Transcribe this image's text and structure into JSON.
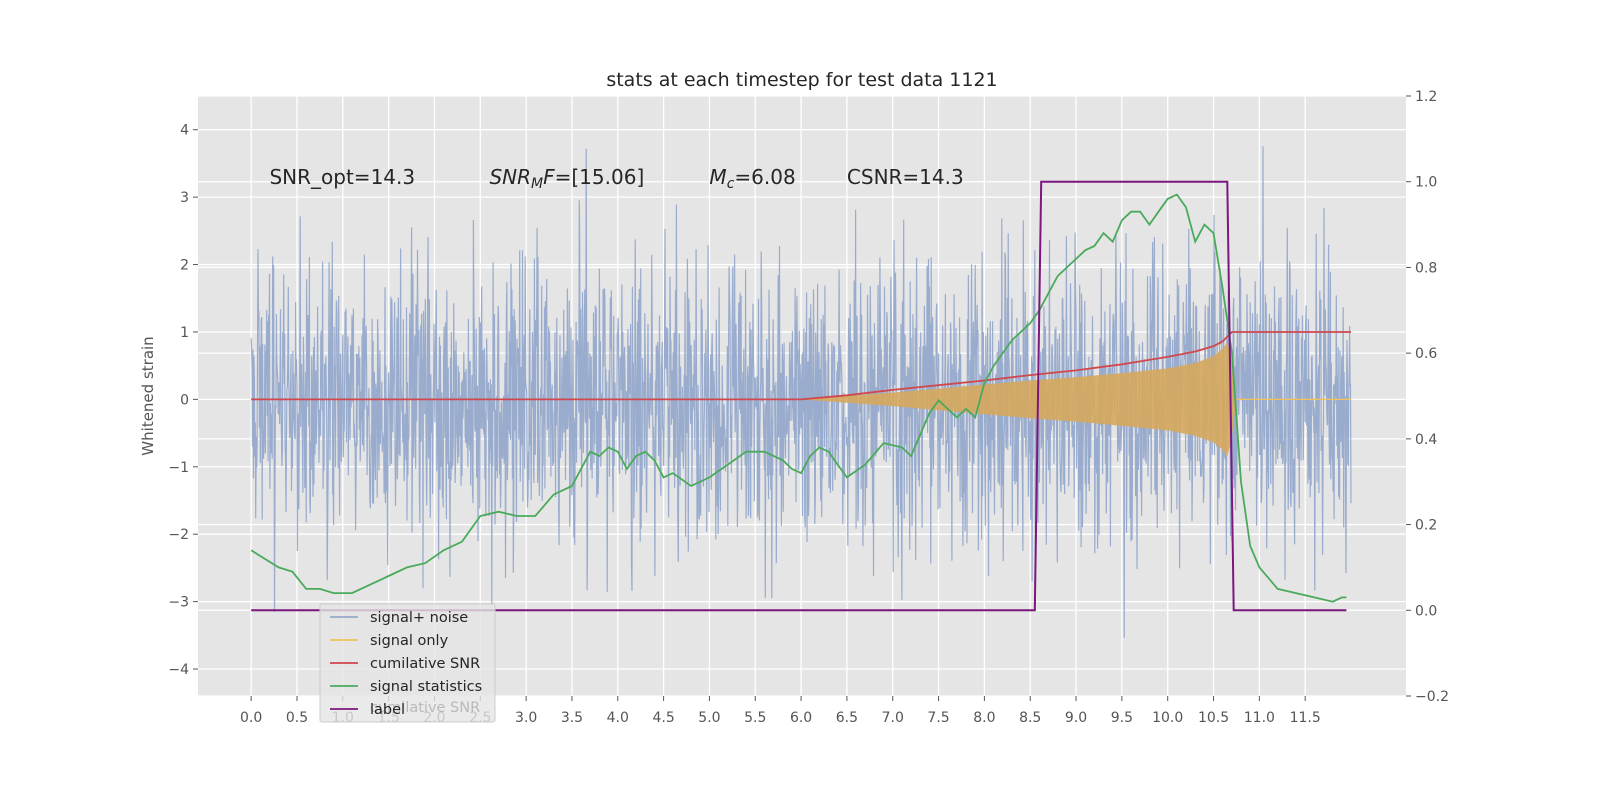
{
  "chart_data": {
    "type": "line",
    "title": "stats at each timestep for test data 1121",
    "ylabel": "Whitened strain",
    "xlim": [
      -0.58,
      12.6
    ],
    "ylim": [
      -4.4,
      4.5
    ],
    "y2lim": [
      -0.2,
      1.2
    ],
    "x_ticks": [
      0.0,
      0.5,
      1.0,
      1.5,
      2.0,
      2.5,
      3.0,
      3.5,
      4.0,
      4.5,
      5.0,
      5.5,
      6.0,
      6.5,
      7.0,
      7.5,
      8.0,
      8.5,
      9.0,
      9.5,
      10.0,
      10.5,
      11.0,
      11.5
    ],
    "x_tick_labels": [
      "0.0",
      "0.5",
      "1.0",
      "1.5",
      "2.0",
      "2.5",
      "3.0",
      "3.5",
      "4.0",
      "4.5",
      "5.0",
      "5.5",
      "6.0",
      "6.5",
      "7.0",
      "7.5",
      "8.0",
      "8.5",
      "9.0",
      "9.5",
      "10.0",
      "10.5",
      "11.0",
      "11.5"
    ],
    "y_ticks": [
      -4,
      -3,
      -2,
      -1,
      0,
      1,
      2,
      3,
      4
    ],
    "y_tick_labels": [
      "−4",
      "−3",
      "−2",
      "−1",
      "0",
      "1",
      "2",
      "3",
      "4"
    ],
    "y2_ticks": [
      -0.2,
      0.0,
      0.2,
      0.4,
      0.6,
      0.8,
      1.0,
      1.2
    ],
    "y2_tick_labels": [
      "−0.2",
      "0.0",
      "0.2",
      "0.4",
      "0.6",
      "0.8",
      "1.0",
      "1.2"
    ],
    "grid": true,
    "legend_position": "lower-left",
    "annotations": [
      {
        "x": 0.2,
        "y": 3.3,
        "parts": [
          {
            "t": "SNR_opt=14.3"
          }
        ]
      },
      {
        "x": 2.6,
        "y": 3.3,
        "parts": [
          {
            "t": "SNR",
            "i": true
          },
          {
            "t": "M",
            "i": true,
            "sub": true
          },
          {
            "t": "F",
            "i": true
          },
          {
            "t": "=[15.06]"
          }
        ]
      },
      {
        "x": 5.0,
        "y": 3.3,
        "parts": [
          {
            "t": "M",
            "i": true
          },
          {
            "t": "c",
            "i": true,
            "sub": true
          },
          {
            "t": "=6.08"
          }
        ]
      },
      {
        "x": 6.5,
        "y": 3.3,
        "parts": [
          {
            "t": "CSNR=14.3"
          }
        ]
      }
    ],
    "series": [
      {
        "name": "signal+ noise",
        "axis": "left",
        "color": "#95a9cb",
        "kind": "noise",
        "x_range": [
          0.0,
          12.0
        ],
        "amplitude_sigma": 1.0,
        "y_extent": [
          -3.9,
          4.15
        ]
      },
      {
        "name": "signal only",
        "axis": "left",
        "color": "#f2c25a",
        "kind": "chirp",
        "x": [
          6.0,
          6.5,
          7.0,
          7.5,
          8.0,
          8.5,
          9.0,
          9.5,
          10.0,
          10.3,
          10.5,
          10.6,
          10.65,
          10.7,
          10.75
        ],
        "envelope": [
          0.0,
          0.05,
          0.1,
          0.16,
          0.22,
          0.28,
          0.33,
          0.39,
          0.46,
          0.54,
          0.64,
          0.75,
          0.85,
          0.55,
          0.0
        ]
      },
      {
        "name": "cumilative SNR",
        "axis": "left",
        "color": "#d0474c",
        "x": [
          0.0,
          1.0,
          2.0,
          3.0,
          4.0,
          5.0,
          6.0,
          6.5,
          7.0,
          7.5,
          8.0,
          8.5,
          9.0,
          9.5,
          10.0,
          10.3,
          10.5,
          10.6,
          10.7,
          10.8,
          12.0
        ],
        "y": [
          0.0,
          0.0,
          0.0,
          0.0,
          0.0,
          0.0,
          0.0,
          0.06,
          0.14,
          0.21,
          0.28,
          0.36,
          0.43,
          0.52,
          0.63,
          0.71,
          0.79,
          0.86,
          1.0,
          1.0,
          1.0
        ]
      },
      {
        "name": "signal statistics",
        "axis": "right",
        "color": "#4aaa5b",
        "x": [
          0.0,
          0.15,
          0.3,
          0.45,
          0.6,
          0.75,
          0.9,
          1.1,
          1.3,
          1.5,
          1.7,
          1.9,
          2.1,
          2.3,
          2.5,
          2.7,
          2.9,
          3.1,
          3.3,
          3.5,
          3.7,
          3.8,
          3.9,
          4.0,
          4.1,
          4.2,
          4.3,
          4.4,
          4.5,
          4.6,
          4.8,
          5.0,
          5.2,
          5.4,
          5.6,
          5.8,
          5.9,
          6.0,
          6.1,
          6.2,
          6.3,
          6.4,
          6.5,
          6.7,
          6.9,
          7.1,
          7.2,
          7.3,
          7.4,
          7.5,
          7.6,
          7.7,
          7.8,
          7.9,
          8.0,
          8.1,
          8.2,
          8.3,
          8.4,
          8.5,
          8.6,
          8.7,
          8.8,
          8.9,
          9.0,
          9.1,
          9.2,
          9.3,
          9.4,
          9.5,
          9.6,
          9.7,
          9.8,
          9.9,
          10.0,
          10.1,
          10.2,
          10.3,
          10.4,
          10.5,
          10.6,
          10.7,
          10.8,
          10.9,
          11.0,
          11.2,
          11.4,
          11.6,
          11.8,
          11.9,
          11.95
        ],
        "y": [
          0.14,
          0.12,
          0.1,
          0.09,
          0.05,
          0.05,
          0.04,
          0.04,
          0.06,
          0.08,
          0.1,
          0.11,
          0.14,
          0.16,
          0.22,
          0.23,
          0.22,
          0.22,
          0.27,
          0.29,
          0.37,
          0.36,
          0.38,
          0.37,
          0.33,
          0.36,
          0.37,
          0.35,
          0.31,
          0.32,
          0.29,
          0.31,
          0.34,
          0.37,
          0.37,
          0.35,
          0.33,
          0.32,
          0.36,
          0.38,
          0.37,
          0.34,
          0.31,
          0.34,
          0.39,
          0.38,
          0.36,
          0.41,
          0.46,
          0.49,
          0.47,
          0.45,
          0.47,
          0.45,
          0.53,
          0.57,
          0.6,
          0.63,
          0.65,
          0.67,
          0.7,
          0.74,
          0.78,
          0.8,
          0.82,
          0.84,
          0.85,
          0.88,
          0.86,
          0.91,
          0.93,
          0.93,
          0.9,
          0.93,
          0.96,
          0.97,
          0.94,
          0.86,
          0.9,
          0.88,
          0.75,
          0.6,
          0.3,
          0.15,
          0.1,
          0.05,
          0.04,
          0.03,
          0.02,
          0.03,
          0.03
        ]
      },
      {
        "name": "label",
        "axis": "right",
        "color": "#7b177f",
        "x": [
          0.0,
          8.55,
          8.62,
          10.65,
          10.72,
          11.95
        ],
        "y": [
          0.0,
          0.0,
          1.0,
          1.0,
          0.0,
          0.0
        ]
      }
    ],
    "legend_overlap_text": "cumilative SNR"
  }
}
